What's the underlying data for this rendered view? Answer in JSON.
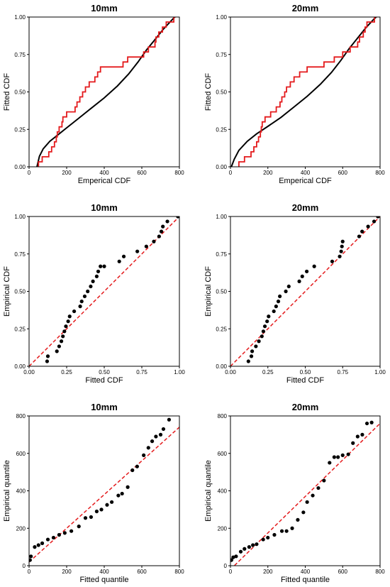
{
  "chart_data": [
    {
      "id": "p1",
      "type": "step_ecdf_vs_fitted",
      "title": "10mm",
      "xlabel": "Emperical CDF",
      "ylabel": "Fitted CDF",
      "xlim": [
        0,
        800
      ],
      "ylim": [
        0,
        1
      ],
      "xticks": [
        "0",
        "200",
        "400",
        "600",
        "800"
      ],
      "yticks": [
        "0.00",
        "0.25",
        "0.50",
        "0.75",
        "1.00"
      ],
      "fitted_curve": {
        "color": "#000000",
        "points": [
          [
            42,
            0.0
          ],
          [
            55,
            0.07
          ],
          [
            75,
            0.12
          ],
          [
            110,
            0.17
          ],
          [
            150,
            0.21
          ],
          [
            200,
            0.26
          ],
          [
            260,
            0.32
          ],
          [
            330,
            0.39
          ],
          [
            400,
            0.46
          ],
          [
            470,
            0.54
          ],
          [
            530,
            0.62
          ],
          [
            580,
            0.7
          ],
          [
            625,
            0.78
          ],
          [
            670,
            0.85
          ],
          [
            715,
            0.92
          ],
          [
            760,
            0.98
          ],
          [
            775,
            1.0
          ]
        ]
      },
      "ecdf_step": {
        "color": "#e41a1c",
        "points": [
          [
            50,
            0.0
          ],
          [
            50,
            0.033
          ],
          [
            70,
            0.033
          ],
          [
            70,
            0.067
          ],
          [
            105,
            0.067
          ],
          [
            105,
            0.1
          ],
          [
            120,
            0.1
          ],
          [
            120,
            0.133
          ],
          [
            135,
            0.133
          ],
          [
            135,
            0.167
          ],
          [
            145,
            0.167
          ],
          [
            145,
            0.2
          ],
          [
            150,
            0.2
          ],
          [
            150,
            0.233
          ],
          [
            160,
            0.233
          ],
          [
            160,
            0.267
          ],
          [
            175,
            0.267
          ],
          [
            175,
            0.3
          ],
          [
            180,
            0.3
          ],
          [
            180,
            0.333
          ],
          [
            200,
            0.333
          ],
          [
            200,
            0.367
          ],
          [
            245,
            0.367
          ],
          [
            245,
            0.4
          ],
          [
            255,
            0.4
          ],
          [
            255,
            0.433
          ],
          [
            270,
            0.433
          ],
          [
            270,
            0.467
          ],
          [
            285,
            0.467
          ],
          [
            285,
            0.5
          ],
          [
            300,
            0.5
          ],
          [
            300,
            0.533
          ],
          [
            320,
            0.533
          ],
          [
            320,
            0.567
          ],
          [
            350,
            0.567
          ],
          [
            350,
            0.6
          ],
          [
            365,
            0.6
          ],
          [
            365,
            0.633
          ],
          [
            380,
            0.633
          ],
          [
            380,
            0.667
          ],
          [
            500,
            0.667
          ],
          [
            500,
            0.7
          ],
          [
            525,
            0.7
          ],
          [
            525,
            0.733
          ],
          [
            610,
            0.733
          ],
          [
            610,
            0.767
          ],
          [
            635,
            0.767
          ],
          [
            635,
            0.8
          ],
          [
            670,
            0.8
          ],
          [
            670,
            0.833
          ],
          [
            675,
            0.833
          ],
          [
            675,
            0.867
          ],
          [
            690,
            0.867
          ],
          [
            690,
            0.9
          ],
          [
            710,
            0.9
          ],
          [
            710,
            0.933
          ],
          [
            730,
            0.933
          ],
          [
            730,
            0.967
          ],
          [
            770,
            0.967
          ],
          [
            770,
            1.0
          ],
          [
            780,
            1.0
          ]
        ]
      }
    },
    {
      "id": "p2",
      "type": "step_ecdf_vs_fitted",
      "title": "20mm",
      "xlabel": "Emperical CDF",
      "ylabel": "Fitted CDF",
      "xlim": [
        0,
        800
      ],
      "ylim": [
        0,
        1
      ],
      "xticks": [
        "0",
        "200",
        "400",
        "600",
        "800"
      ],
      "yticks": [
        "0.00",
        "0.25",
        "0.50",
        "0.75",
        "1.00"
      ],
      "fitted_curve": {
        "color": "#000000",
        "points": [
          [
            5,
            0.0
          ],
          [
            20,
            0.05
          ],
          [
            45,
            0.11
          ],
          [
            90,
            0.17
          ],
          [
            140,
            0.22
          ],
          [
            200,
            0.27
          ],
          [
            270,
            0.33
          ],
          [
            340,
            0.4
          ],
          [
            410,
            0.47
          ],
          [
            480,
            0.55
          ],
          [
            540,
            0.63
          ],
          [
            590,
            0.71
          ],
          [
            635,
            0.79
          ],
          [
            680,
            0.86
          ],
          [
            725,
            0.93
          ],
          [
            770,
            0.99
          ],
          [
            780,
            1.0
          ]
        ]
      },
      "ecdf_step": {
        "color": "#e41a1c",
        "points": [
          [
            45,
            0.0
          ],
          [
            45,
            0.033
          ],
          [
            75,
            0.033
          ],
          [
            75,
            0.067
          ],
          [
            110,
            0.067
          ],
          [
            110,
            0.1
          ],
          [
            125,
            0.1
          ],
          [
            125,
            0.133
          ],
          [
            140,
            0.133
          ],
          [
            140,
            0.167
          ],
          [
            150,
            0.167
          ],
          [
            150,
            0.2
          ],
          [
            160,
            0.2
          ],
          [
            160,
            0.233
          ],
          [
            165,
            0.233
          ],
          [
            165,
            0.267
          ],
          [
            170,
            0.267
          ],
          [
            170,
            0.3
          ],
          [
            185,
            0.3
          ],
          [
            185,
            0.333
          ],
          [
            215,
            0.333
          ],
          [
            215,
            0.367
          ],
          [
            245,
            0.367
          ],
          [
            245,
            0.4
          ],
          [
            265,
            0.4
          ],
          [
            265,
            0.433
          ],
          [
            275,
            0.433
          ],
          [
            275,
            0.467
          ],
          [
            290,
            0.467
          ],
          [
            290,
            0.5
          ],
          [
            300,
            0.5
          ],
          [
            300,
            0.533
          ],
          [
            320,
            0.533
          ],
          [
            320,
            0.567
          ],
          [
            340,
            0.567
          ],
          [
            340,
            0.6
          ],
          [
            370,
            0.6
          ],
          [
            370,
            0.633
          ],
          [
            410,
            0.633
          ],
          [
            410,
            0.667
          ],
          [
            500,
            0.667
          ],
          [
            500,
            0.7
          ],
          [
            555,
            0.7
          ],
          [
            555,
            0.733
          ],
          [
            600,
            0.733
          ],
          [
            600,
            0.767
          ],
          [
            640,
            0.767
          ],
          [
            640,
            0.8
          ],
          [
            680,
            0.8
          ],
          [
            680,
            0.833
          ],
          [
            690,
            0.833
          ],
          [
            690,
            0.867
          ],
          [
            710,
            0.867
          ],
          [
            710,
            0.9
          ],
          [
            720,
            0.9
          ],
          [
            720,
            0.933
          ],
          [
            730,
            0.933
          ],
          [
            730,
            0.967
          ],
          [
            770,
            0.967
          ],
          [
            770,
            1.0
          ],
          [
            780,
            1.0
          ]
        ]
      }
    },
    {
      "id": "p3",
      "type": "scatter",
      "title": "10mm",
      "xlabel": "Fitted CDF",
      "ylabel": "Empirical CDF",
      "xlim": [
        0,
        1
      ],
      "ylim": [
        0,
        1
      ],
      "xticks": [
        "0.00",
        "0.25",
        "0.50",
        "0.75",
        "1.00"
      ],
      "yticks": [
        "0.00",
        "0.25",
        "0.50",
        "0.75",
        "1.00"
      ],
      "reference_line": {
        "color": "#e41a1c",
        "from": [
          0,
          0
        ],
        "to": [
          1,
          1
        ]
      },
      "points": [
        [
          0.12,
          0.033
        ],
        [
          0.125,
          0.067
        ],
        [
          0.185,
          0.1
        ],
        [
          0.2,
          0.133
        ],
        [
          0.215,
          0.167
        ],
        [
          0.225,
          0.2
        ],
        [
          0.235,
          0.233
        ],
        [
          0.245,
          0.267
        ],
        [
          0.26,
          0.3
        ],
        [
          0.27,
          0.333
        ],
        [
          0.3,
          0.367
        ],
        [
          0.34,
          0.4
        ],
        [
          0.35,
          0.433
        ],
        [
          0.37,
          0.467
        ],
        [
          0.39,
          0.5
        ],
        [
          0.41,
          0.533
        ],
        [
          0.425,
          0.567
        ],
        [
          0.45,
          0.6
        ],
        [
          0.46,
          0.633
        ],
        [
          0.475,
          0.667
        ],
        [
          0.5,
          0.667
        ],
        [
          0.6,
          0.7
        ],
        [
          0.63,
          0.733
        ],
        [
          0.72,
          0.767
        ],
        [
          0.78,
          0.8
        ],
        [
          0.83,
          0.833
        ],
        [
          0.865,
          0.867
        ],
        [
          0.88,
          0.9
        ],
        [
          0.89,
          0.933
        ],
        [
          0.92,
          0.967
        ],
        [
          0.99,
          1.0
        ]
      ]
    },
    {
      "id": "p4",
      "type": "scatter",
      "title": "20mm",
      "xlabel": "Fitted CDF",
      "ylabel": "Empirical CDF",
      "xlim": [
        0,
        1
      ],
      "ylim": [
        0,
        1
      ],
      "xticks": [
        "0.00",
        "0.25",
        "0.50",
        "0.75",
        "1.00"
      ],
      "yticks": [
        "0.00",
        "0.25",
        "0.50",
        "0.75",
        "1.00"
      ],
      "reference_line": {
        "color": "#e41a1c",
        "from": [
          0,
          0
        ],
        "to": [
          1,
          1
        ]
      },
      "points": [
        [
          0.12,
          0.033
        ],
        [
          0.14,
          0.067
        ],
        [
          0.145,
          0.1
        ],
        [
          0.17,
          0.133
        ],
        [
          0.19,
          0.167
        ],
        [
          0.21,
          0.2
        ],
        [
          0.22,
          0.233
        ],
        [
          0.23,
          0.267
        ],
        [
          0.245,
          0.3
        ],
        [
          0.255,
          0.333
        ],
        [
          0.29,
          0.367
        ],
        [
          0.305,
          0.4
        ],
        [
          0.32,
          0.433
        ],
        [
          0.33,
          0.467
        ],
        [
          0.37,
          0.5
        ],
        [
          0.39,
          0.533
        ],
        [
          0.46,
          0.567
        ],
        [
          0.48,
          0.6
        ],
        [
          0.51,
          0.633
        ],
        [
          0.56,
          0.667
        ],
        [
          0.68,
          0.7
        ],
        [
          0.73,
          0.733
        ],
        [
          0.74,
          0.767
        ],
        [
          0.745,
          0.8
        ],
        [
          0.75,
          0.833
        ],
        [
          0.86,
          0.867
        ],
        [
          0.88,
          0.9
        ],
        [
          0.92,
          0.933
        ],
        [
          0.96,
          0.967
        ],
        [
          0.985,
          1.0
        ]
      ]
    },
    {
      "id": "p5",
      "type": "scatter",
      "title": "10mm",
      "xlabel": "Fitted quantile",
      "ylabel": "Empirical quantile",
      "xlim": [
        0,
        800
      ],
      "ylim": [
        0,
        800
      ],
      "xticks": [
        "0",
        "200",
        "400",
        "600",
        "800"
      ],
      "yticks": [
        "0",
        "200",
        "400",
        "600",
        "800"
      ],
      "reference_line": {
        "color": "#e41a1c",
        "from": [
          0,
          20
        ],
        "to": [
          800,
          740
        ]
      },
      "points": [
        [
          5,
          30
        ],
        [
          10,
          50
        ],
        [
          30,
          100
        ],
        [
          50,
          110
        ],
        [
          70,
          120
        ],
        [
          100,
          140
        ],
        [
          130,
          150
        ],
        [
          160,
          165
        ],
        [
          190,
          175
        ],
        [
          225,
          185
        ],
        [
          265,
          210
        ],
        [
          300,
          255
        ],
        [
          330,
          260
        ],
        [
          360,
          290
        ],
        [
          385,
          300
        ],
        [
          415,
          325
        ],
        [
          440,
          340
        ],
        [
          475,
          375
        ],
        [
          495,
          385
        ],
        [
          525,
          420
        ],
        [
          550,
          510
        ],
        [
          575,
          530
        ],
        [
          610,
          590
        ],
        [
          635,
          630
        ],
        [
          655,
          665
        ],
        [
          675,
          690
        ],
        [
          700,
          700
        ],
        [
          715,
          730
        ],
        [
          745,
          780
        ]
      ]
    },
    {
      "id": "p6",
      "type": "scatter",
      "title": "20mm",
      "xlabel": "Fitted quantile",
      "ylabel": "Empirical quantile",
      "xlim": [
        0,
        800
      ],
      "ylim": [
        0,
        800
      ],
      "xticks": [
        "0",
        "200",
        "400",
        "600",
        "800"
      ],
      "yticks": [
        "0",
        "200",
        "400",
        "600",
        "800"
      ],
      "reference_line": {
        "color": "#e41a1c",
        "from": [
          0,
          -20
        ],
        "to": [
          800,
          760
        ]
      },
      "points": [
        [
          5,
          30
        ],
        [
          15,
          45
        ],
        [
          30,
          50
        ],
        [
          55,
          75
        ],
        [
          75,
          90
        ],
        [
          100,
          100
        ],
        [
          120,
          110
        ],
        [
          140,
          115
        ],
        [
          175,
          140
        ],
        [
          200,
          150
        ],
        [
          235,
          165
        ],
        [
          275,
          185
        ],
        [
          300,
          185
        ],
        [
          330,
          200
        ],
        [
          360,
          245
        ],
        [
          390,
          285
        ],
        [
          410,
          340
        ],
        [
          440,
          375
        ],
        [
          470,
          415
        ],
        [
          500,
          455
        ],
        [
          530,
          550
        ],
        [
          555,
          580
        ],
        [
          575,
          580
        ],
        [
          600,
          590
        ],
        [
          630,
          595
        ],
        [
          655,
          655
        ],
        [
          680,
          690
        ],
        [
          705,
          700
        ],
        [
          730,
          760
        ],
        [
          755,
          765
        ]
      ]
    }
  ]
}
